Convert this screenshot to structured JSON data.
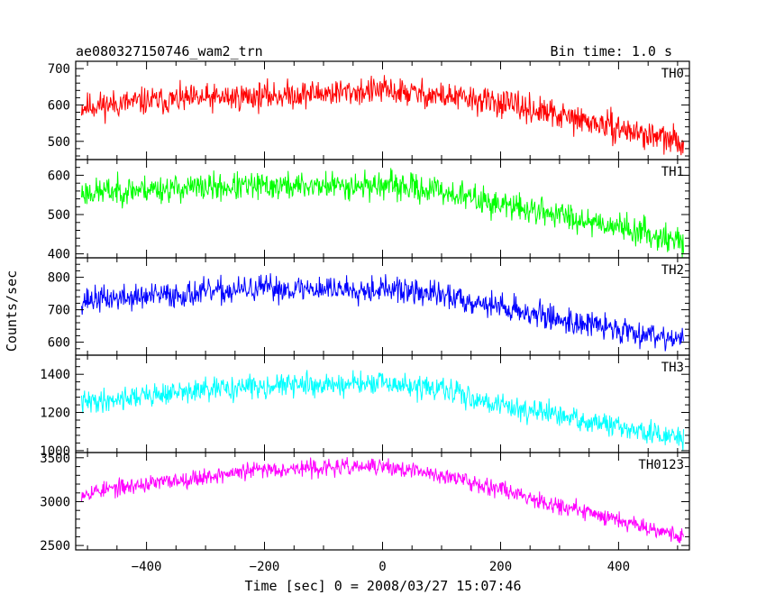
{
  "chart_data": {
    "type": "line",
    "title": "ae080327150746_wam2_trn",
    "bin_time": "Bin time: 1.0 s",
    "xlabel": "Time [sec] 0 = 2008/03/27 15:07:46",
    "ylabel": "Counts/sec",
    "xlim": [
      -520,
      520
    ],
    "x_ticks": [
      -400,
      -200,
      0,
      200,
      400
    ],
    "x_tick_labels": [
      "−400",
      "−200",
      "0",
      "200",
      "400"
    ],
    "x_range": [
      -510,
      510
    ],
    "panels": [
      {
        "name": "TH0",
        "color": "#ff0000",
        "ylim": [
          450,
          720
        ],
        "y_ticks": [
          500,
          600,
          700
        ],
        "y_tick_labels": [
          "500",
          "600",
          "700"
        ],
        "trend": {
          "x": [
            -510,
            -400,
            -200,
            0,
            100,
            200,
            300,
            400,
            510
          ],
          "y": [
            595,
            610,
            625,
            640,
            625,
            605,
            570,
            535,
            495
          ]
        },
        "noise": 38,
        "seed": 11
      },
      {
        "name": "TH1",
        "color": "#00ff00",
        "ylim": [
          390,
          640
        ],
        "y_ticks": [
          400,
          500,
          600
        ],
        "y_tick_labels": [
          "400",
          "500",
          "600"
        ],
        "trend": {
          "x": [
            -510,
            -400,
            -200,
            0,
            100,
            200,
            300,
            400,
            510
          ],
          "y": [
            555,
            565,
            572,
            575,
            560,
            525,
            500,
            470,
            430
          ]
        },
        "noise": 35,
        "seed": 23
      },
      {
        "name": "TH2",
        "color": "#0000ff",
        "ylim": [
          560,
          860
        ],
        "y_ticks": [
          600,
          700,
          800
        ],
        "y_tick_labels": [
          "600",
          "700",
          "800"
        ],
        "trend": {
          "x": [
            -510,
            -400,
            -200,
            0,
            100,
            200,
            300,
            400,
            510
          ],
          "y": [
            730,
            740,
            765,
            765,
            745,
            710,
            670,
            640,
            610
          ]
        },
        "noise": 40,
        "seed": 37
      },
      {
        "name": "TH3",
        "color": "#00ffff",
        "ylim": [
          990,
          1500
        ],
        "y_ticks": [
          1000,
          1200,
          1400
        ],
        "y_tick_labels": [
          "1000",
          "1200",
          "1400"
        ],
        "trend": {
          "x": [
            -510,
            -400,
            -200,
            0,
            100,
            200,
            300,
            400,
            510
          ],
          "y": [
            1250,
            1290,
            1340,
            1350,
            1320,
            1240,
            1180,
            1120,
            1060
          ]
        },
        "noise": 60,
        "seed": 41
      },
      {
        "name": "TH0123",
        "color": "#ff00ff",
        "ylim": [
          2450,
          3560
        ],
        "y_ticks": [
          2500,
          3000,
          3500
        ],
        "y_tick_labels": [
          "2500",
          "3000",
          "3500"
        ],
        "trend": {
          "x": [
            -510,
            -400,
            -200,
            0,
            100,
            200,
            300,
            400,
            510
          ],
          "y": [
            3100,
            3200,
            3370,
            3400,
            3300,
            3150,
            2950,
            2800,
            2600
          ]
        },
        "noise": 95,
        "seed": 53
      }
    ]
  }
}
